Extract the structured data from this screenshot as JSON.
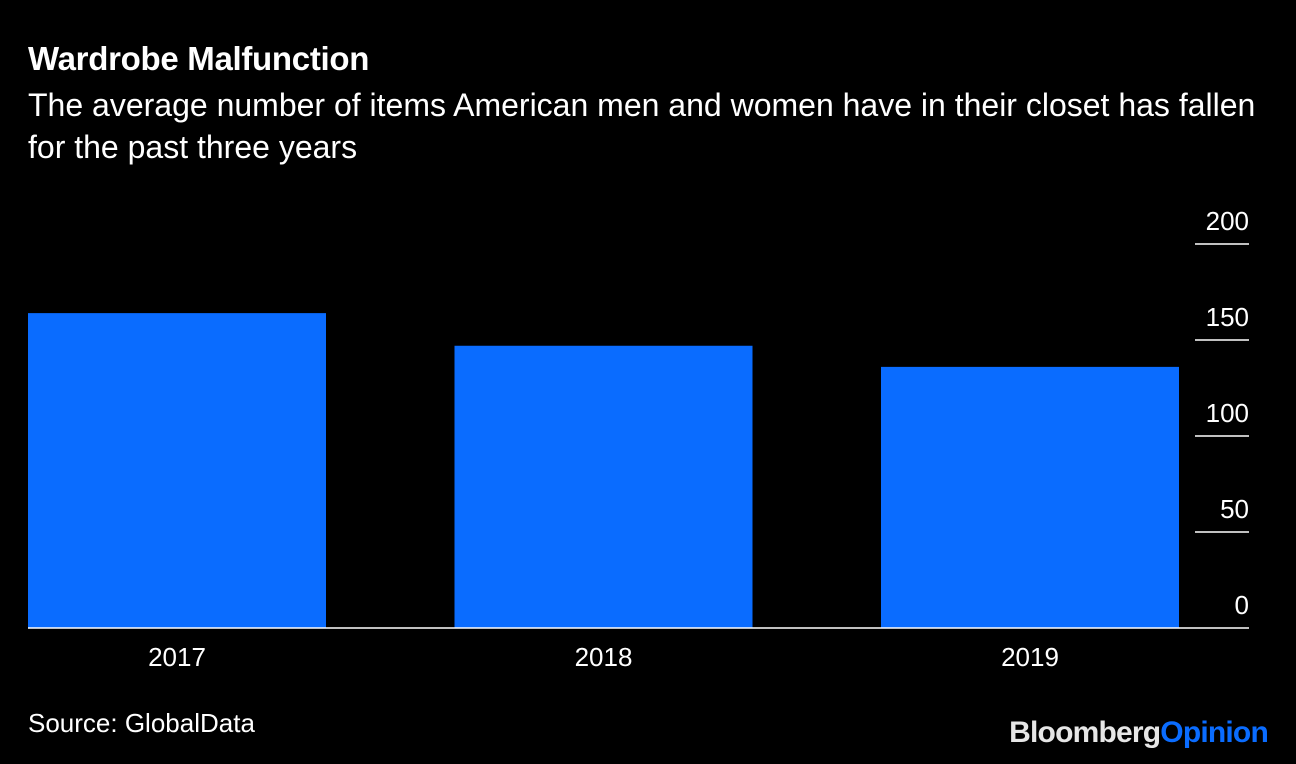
{
  "header": {
    "title": "Wardrobe Malfunction",
    "subtitle": "The average number of items American men and women have in their closet has fallen for the past three years"
  },
  "footer": {
    "source": "Source: GlobalData",
    "brand_part1": "Bloomberg",
    "brand_part2": "Opinion"
  },
  "colors": {
    "background": "#000000",
    "bar": "#0a6cff",
    "text": "#ffffff",
    "axis": "#ffffff"
  },
  "chart_data": {
    "type": "bar",
    "categories": [
      "2017",
      "2018",
      "2019"
    ],
    "values": [
      164,
      147,
      136
    ],
    "ylim": [
      0,
      200
    ],
    "yticks": [
      0,
      50,
      100,
      150,
      200
    ],
    "y_axis_side": "right",
    "grid": false,
    "legend": "none"
  }
}
